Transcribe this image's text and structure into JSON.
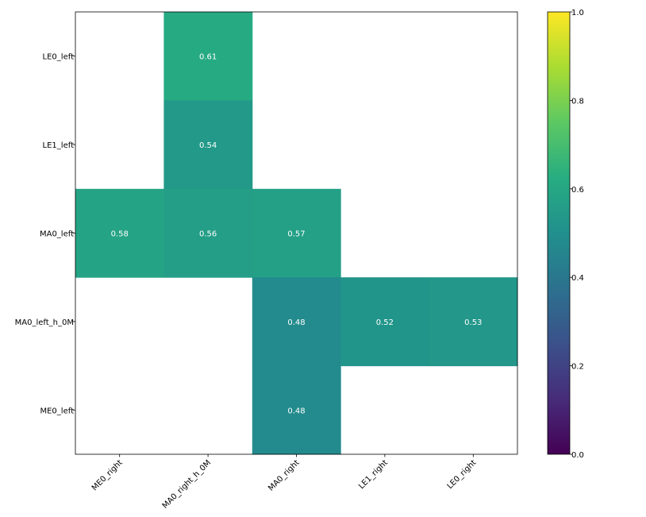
{
  "chart_data": {
    "type": "heatmap",
    "title": "",
    "xlabel": "",
    "ylabel": "",
    "x_categories": [
      "ME0_right",
      "MA0_right_h_0M",
      "MA0_right",
      "LE1_right",
      "LE0_right"
    ],
    "y_categories": [
      "LE0_left",
      "LE1_left",
      "MA0_left",
      "MA0_left_h_0M",
      "ME0_left"
    ],
    "values": [
      [
        null,
        0.61,
        null,
        null,
        null
      ],
      [
        null,
        0.54,
        null,
        null,
        null
      ],
      [
        0.58,
        0.56,
        0.57,
        null,
        null
      ],
      [
        null,
        null,
        0.48,
        0.52,
        0.53
      ],
      [
        null,
        null,
        0.48,
        null,
        null
      ]
    ],
    "value_labels": [
      [
        null,
        "0.61",
        null,
        null,
        null
      ],
      [
        null,
        "0.54",
        null,
        null,
        null
      ],
      [
        "0.58",
        "0.56",
        "0.57",
        null,
        null
      ],
      [
        null,
        null,
        "0.48",
        "0.52",
        "0.53"
      ],
      [
        null,
        null,
        "0.48",
        null,
        null
      ]
    ],
    "colormap": "viridis",
    "vmin": 0.0,
    "vmax": 1.0,
    "colorbar": {
      "ticks": [
        0.0,
        0.2,
        0.4,
        0.6,
        0.8,
        1.0
      ],
      "tick_labels": [
        "0.0",
        "0.2",
        "0.4",
        "0.6",
        "0.8",
        "1.0"
      ]
    },
    "x_tick_rotation": "45 degrees",
    "grid": false
  }
}
